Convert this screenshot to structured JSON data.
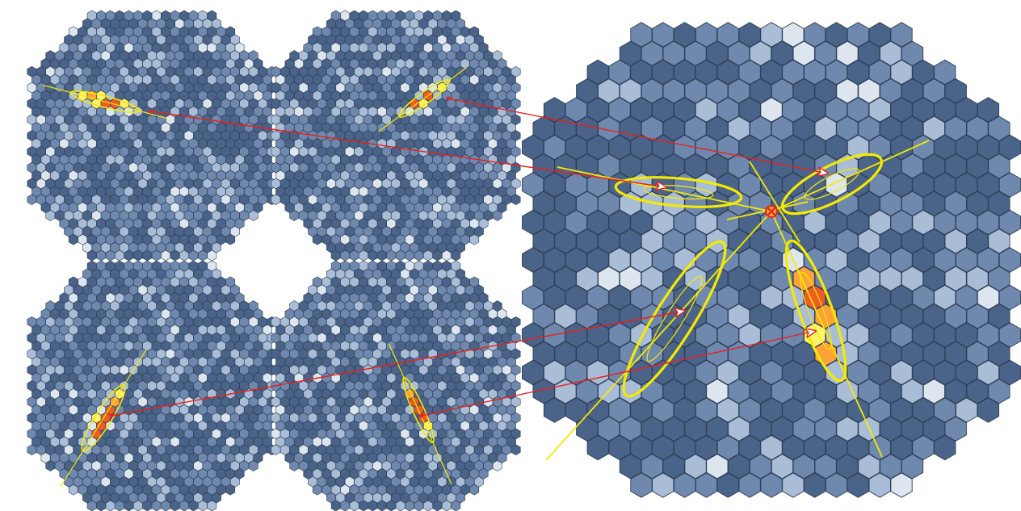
{
  "colors": {
    "background": "#ffffff",
    "pixel_dark": "#4a6388",
    "pixel_mid": "#6f88ad",
    "pixel_light": "#a9bdd6",
    "pixel_bright": "#dde6ef",
    "pixel_stroke": "#2e3f58",
    "signal_yellow": "#fff36b",
    "signal_orange": "#ffa23a",
    "signal_red": "#f05a24",
    "hillas_ellipse": "#f5ea00",
    "arrow": "#e8201e"
  },
  "panels": [
    {
      "id": "camera-1",
      "kind": "small-camera",
      "shower_angle_deg": 15
    },
    {
      "id": "camera-2",
      "kind": "small-camera",
      "shower_angle_deg": -36
    },
    {
      "id": "camera-3",
      "kind": "small-camera",
      "shower_angle_deg": -58
    },
    {
      "id": "camera-4",
      "kind": "small-camera",
      "shower_angle_deg": 66
    },
    {
      "id": "combined",
      "kind": "large-camera",
      "shower_count": 4
    }
  ],
  "reconstruction": {
    "marker_icon": "crossed-circle-icon",
    "arrow_count": 4
  }
}
